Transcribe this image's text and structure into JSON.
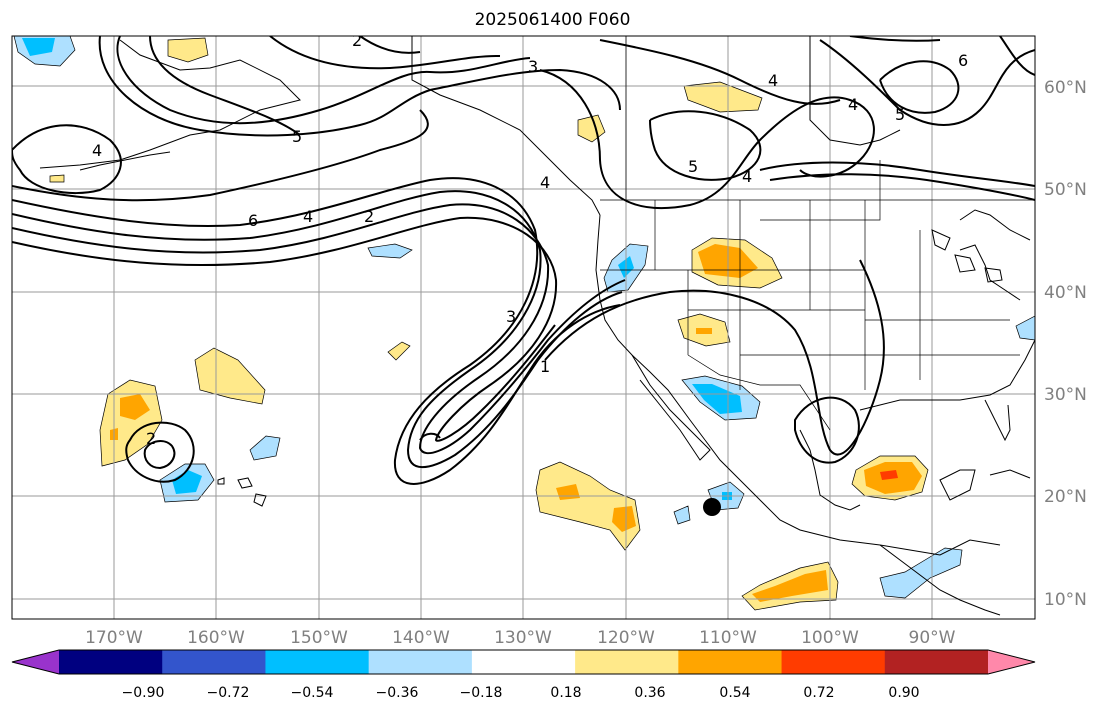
{
  "title": "2025061400 F060",
  "lat_labels": [
    "60°N",
    "50°N",
    "40°N",
    "30°N",
    "20°N",
    "10°N"
  ],
  "lon_labels": [
    "170°W",
    "160°W",
    "150°W",
    "140°W",
    "130°W",
    "120°W",
    "110°W",
    "100°W",
    "90°W"
  ],
  "colorbar": {
    "ticks": [
      "−0.90",
      "−0.72",
      "−0.54",
      "−0.36",
      "−0.18",
      "0.18",
      "0.36",
      "0.54",
      "0.72",
      "0.90"
    ],
    "colors": [
      "#9933cc",
      "#000080",
      "#3355cc",
      "#00bfff",
      "#aee0ff",
      "#ffffff",
      "#ffe98a",
      "#ffa500",
      "#ff3c00",
      "#b22222",
      "#ff88aa"
    ]
  },
  "contour_labels": [
    "2",
    "3",
    "4",
    "4",
    "4",
    "5",
    "6",
    "6",
    "4",
    "2",
    "5",
    "4",
    "5",
    "4",
    "3",
    "1",
    "2"
  ],
  "marker": "black-dot"
}
